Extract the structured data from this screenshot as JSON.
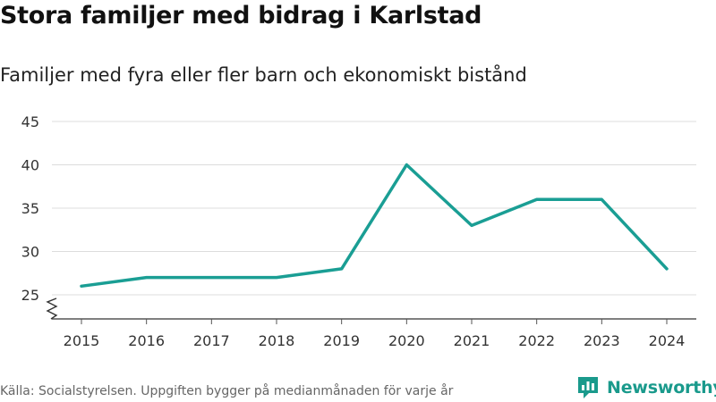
{
  "header": {
    "title": "Stora familjer med bidrag i Karlstad",
    "subtitle": "Familjer med fyra eller fler barn och ekonomiskt bistånd"
  },
  "footer": {
    "source": "Källa: Socialstyrelsen. Uppgiften bygger på medianmånaden för varje år",
    "brand": "Newsworthy"
  },
  "colors": {
    "line": "#1a9e94",
    "brand": "#1a9a8c"
  },
  "chart_data": {
    "type": "line",
    "title": "Stora familjer med bidrag i Karlstad",
    "subtitle": "Familjer med fyra eller fler barn och ekonomiskt bistånd",
    "xlabel": "",
    "ylabel": "",
    "x": [
      "2015",
      "2016",
      "2017",
      "2018",
      "2019",
      "2020",
      "2021",
      "2022",
      "2023",
      "2024"
    ],
    "series": [
      {
        "name": "Familjer",
        "values": [
          26,
          27,
          27,
          27,
          28,
          40,
          33,
          36,
          36,
          28
        ]
      }
    ],
    "ylim": [
      22,
      45
    ],
    "yticks": [
      25,
      30,
      35,
      40,
      45
    ],
    "grid": true,
    "axis_break": true
  }
}
